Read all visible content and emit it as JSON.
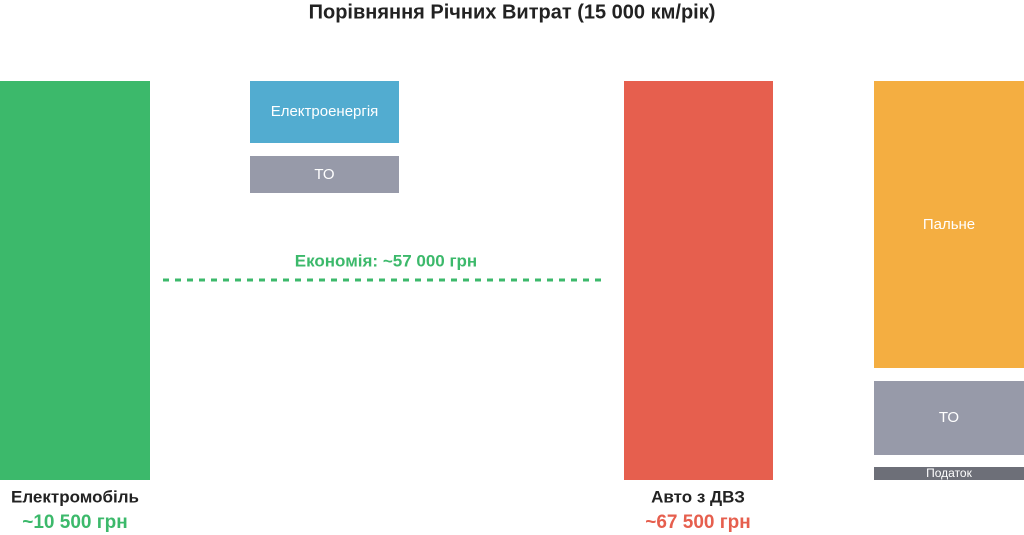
{
  "title": "Порівняння Річних Витрат (15 000 км/рік)",
  "electric": {
    "label": "Електромобіль",
    "total": "~10 500 грн",
    "segments": [
      "Електроенергія",
      "ТО"
    ]
  },
  "savings": "Економія: ~57 000 грн",
  "ice": {
    "label": "Авто з ДВЗ",
    "total": "~67 500 грн",
    "segments": [
      "Пальне",
      "ТО",
      "Податок"
    ]
  }
}
